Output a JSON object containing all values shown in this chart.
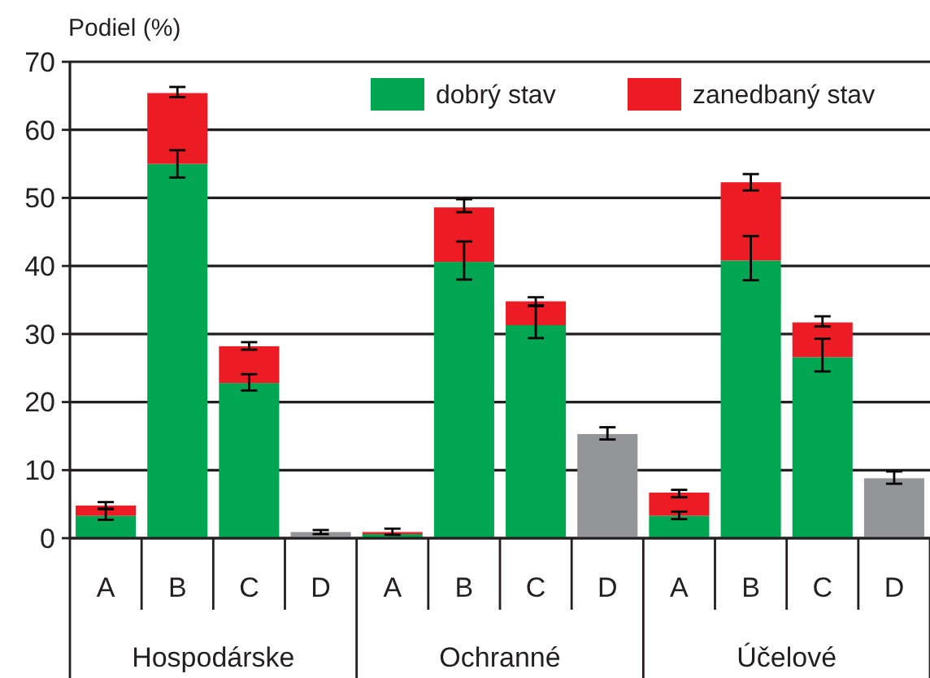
{
  "chart_data": {
    "type": "bar",
    "stacked": true,
    "ylabel": "Podiel (%)",
    "categories": [
      "A",
      "B",
      "C",
      "D",
      "A",
      "B",
      "C",
      "D",
      "A",
      "B",
      "C",
      "D"
    ],
    "annotations": [
      "Hospodárske",
      "Ochranné",
      "Účelové"
    ],
    "series": [
      {
        "name": "dobrý stav",
        "color": "#00a651",
        "values": [
          3.3,
          55,
          22.8,
          null,
          0.6,
          40.6,
          31.3,
          null,
          3.3,
          40.8,
          26.6,
          null
        ],
        "errors": [
          [
            2.7,
            4.3
          ],
          [
            53,
            57
          ],
          [
            21.7,
            24.1
          ],
          null,
          null,
          [
            38,
            43.6
          ],
          [
            29.4,
            34.2
          ],
          null,
          [
            2.8,
            3.9
          ],
          [
            37.9,
            44.4
          ],
          [
            24.5,
            29.3
          ],
          null
        ]
      },
      {
        "name": "zanedbaný stav",
        "color": "#ed1c24",
        "values": [
          1.5,
          10.4,
          5.4,
          null,
          0.3,
          8,
          3.5,
          null,
          3.4,
          11.5,
          5.1,
          null
        ],
        "errors": [
          [
            4.3,
            5.3
          ],
          [
            64.8,
            66.3
          ],
          [
            27.7,
            28.8
          ],
          null,
          [
            0.5,
            1.4
          ],
          [
            47.9,
            49.8
          ],
          [
            34.1,
            35.4
          ],
          null,
          [
            6,
            7.1
          ],
          [
            51.1,
            53.5
          ],
          [
            31.1,
            32.6
          ],
          null
        ]
      },
      {
        "color": "#939598",
        "values": [
          null,
          null,
          null,
          0.9,
          null,
          null,
          null,
          15.3,
          null,
          null,
          null,
          8.8
        ],
        "errors": [
          null,
          null,
          null,
          [
            0.6,
            1.2
          ],
          null,
          null,
          null,
          [
            14.5,
            16.3
          ],
          null,
          null,
          null,
          [
            8,
            9.8
          ]
        ]
      }
    ],
    "ylim": [
      0,
      70
    ],
    "yticks": [
      0,
      10,
      20,
      30,
      40,
      50,
      60,
      70
    ],
    "grid": "y",
    "legend": "top right"
  }
}
